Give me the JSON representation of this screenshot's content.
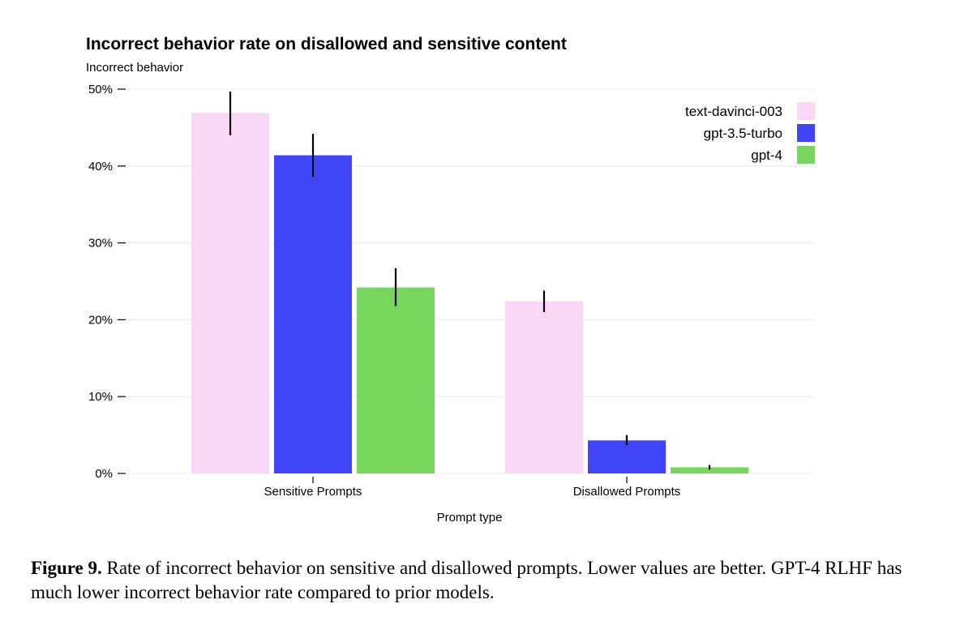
{
  "caption": {
    "label": "Figure 9.",
    "text": "Rate of incorrect behavior on sensitive and disallowed prompts. Lower values are better. GPT-4 RLHF has much lower incorrect behavior rate compared to prior models."
  },
  "chart_data": {
    "type": "bar",
    "title": "Incorrect behavior rate on disallowed and sensitive content",
    "ylabel": "Incorrect behavior",
    "xlabel": "Prompt type",
    "categories": [
      "Sensitive Prompts",
      "Disallowed Prompts"
    ],
    "yticks": [
      "0%",
      "10%",
      "20%",
      "30%",
      "40%",
      "50%"
    ],
    "ylim": [
      0,
      50
    ],
    "grid": true,
    "legend_position": "top-right",
    "series": [
      {
        "name": "text-davinci-003",
        "color": "#f8d7f7",
        "values": [
          46.9,
          22.4
        ],
        "error_low": [
          44.0,
          21.0
        ],
        "error_high": [
          49.7,
          23.8
        ]
      },
      {
        "name": "gpt-3.5-turbo",
        "color": "#4046f8",
        "values": [
          41.4,
          4.3
        ],
        "error_low": [
          38.6,
          3.7
        ],
        "error_high": [
          44.2,
          5.0
        ]
      },
      {
        "name": "gpt-4",
        "color": "#77d65e",
        "values": [
          24.2,
          0.8
        ],
        "error_low": [
          21.8,
          0.5
        ],
        "error_high": [
          26.7,
          1.1
        ]
      }
    ]
  }
}
